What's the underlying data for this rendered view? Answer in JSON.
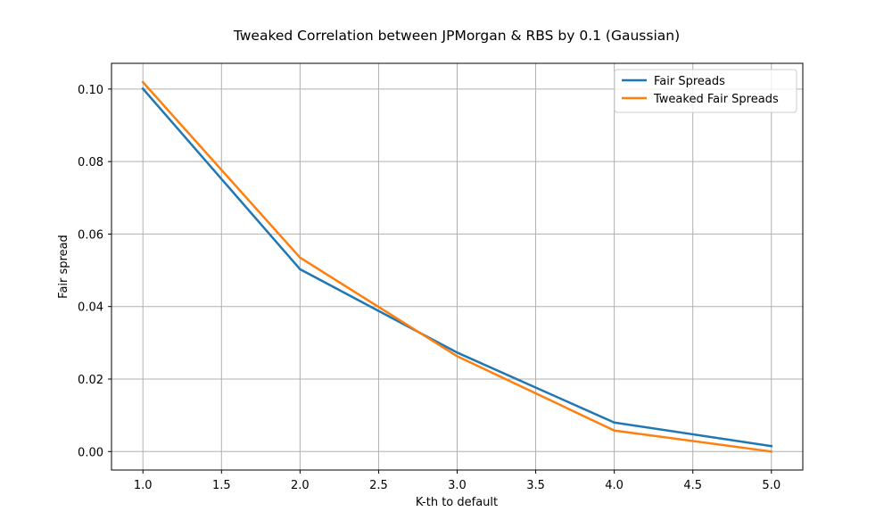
{
  "chart_data": {
    "type": "line",
    "title": "Tweaked Correlation between JPMorgan & RBS by 0.1 (Gaussian)",
    "xlabel": "K-th to default",
    "ylabel": "Fair spread",
    "x": [
      1,
      2,
      3,
      4,
      5
    ],
    "xlim": [
      0.8,
      5.2
    ],
    "ylim": [
      -0.0051,
      0.1071
    ],
    "xticks": [
      1.0,
      1.5,
      2.0,
      2.5,
      3.0,
      3.5,
      4.0,
      4.5,
      5.0
    ],
    "xtick_labels": [
      "1.0",
      "1.5",
      "2.0",
      "2.5",
      "3.0",
      "3.5",
      "4.0",
      "4.5",
      "5.0"
    ],
    "yticks": [
      0.0,
      0.02,
      0.04,
      0.06,
      0.08,
      0.1
    ],
    "ytick_labels": [
      "0.00",
      "0.02",
      "0.04",
      "0.06",
      "0.08",
      "0.10"
    ],
    "grid": true,
    "legend_position": "top-right",
    "series": [
      {
        "name": "Fair Spreads",
        "color": "#1f77b4",
        "values": [
          0.1001,
          0.0503,
          0.0273,
          0.008,
          0.0015
        ]
      },
      {
        "name": "Tweaked Fair Spreads",
        "color": "#ff7f0e",
        "values": [
          0.1019,
          0.0535,
          0.0263,
          0.0058,
          0.0
        ]
      }
    ]
  }
}
